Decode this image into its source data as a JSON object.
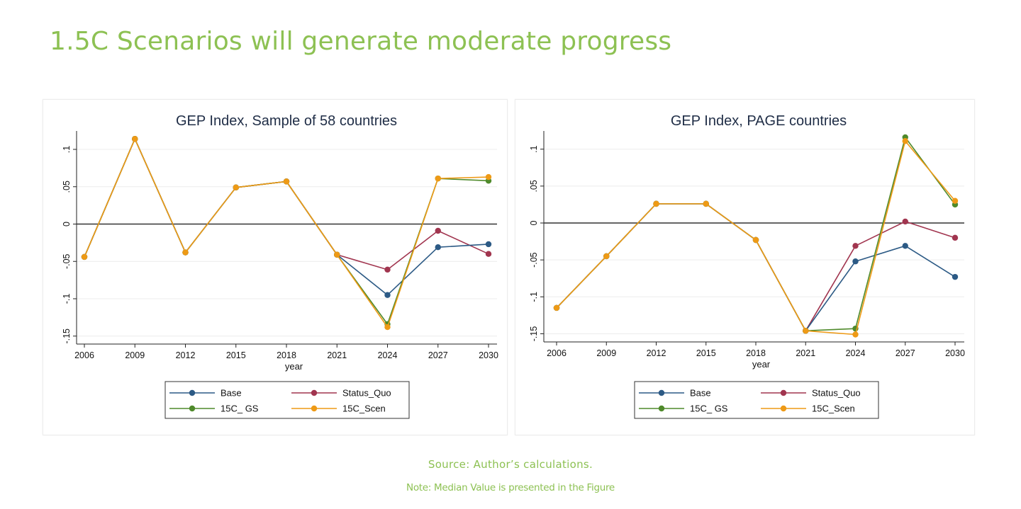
{
  "page": {
    "title": "1.5C Scenarios will generate moderate progress",
    "source": "Source: Author’s calculations.",
    "note": "Note: Median Value is presented in the Figure"
  },
  "colors": {
    "title_green": "#8dc153",
    "Base": "#2c5a85",
    "Status_Quo": "#a1354f",
    "15C_ GS": "#4f8a2b",
    "15C_Scen": "#ee9a16",
    "zero_line": "#333333"
  },
  "chart_data": [
    {
      "type": "line",
      "title": "GEP Index, Sample of 58 countries",
      "xlabel": "year",
      "ylabel": "",
      "x": [
        "2006",
        "2009",
        "2012",
        "2015",
        "2018",
        "2021",
        "2024",
        "2027",
        "2030"
      ],
      "yticks": [
        ".1",
        ".05",
        "0",
        "-.05",
        "-.1",
        "-.15"
      ],
      "ylim": [
        -0.16,
        0.12
      ],
      "reference_line": 0,
      "grid": true,
      "legend": "bottom",
      "series": [
        {
          "name": "Base",
          "values": [
            -0.044,
            0.114,
            -0.038,
            0.049,
            0.057,
            -0.041,
            -0.095,
            -0.031,
            -0.027
          ]
        },
        {
          "name": "Status_Quo",
          "values": [
            -0.044,
            0.114,
            -0.038,
            0.049,
            0.057,
            -0.041,
            -0.061,
            -0.009,
            -0.04
          ]
        },
        {
          "name": "15C_ GS",
          "values": [
            -0.044,
            0.114,
            -0.038,
            0.049,
            0.057,
            -0.041,
            -0.134,
            0.061,
            0.058
          ]
        },
        {
          "name": "15C_Scen",
          "values": [
            -0.044,
            0.114,
            -0.038,
            0.049,
            0.057,
            -0.041,
            -0.138,
            0.061,
            0.063
          ]
        }
      ]
    },
    {
      "type": "line",
      "title": "GEP Index, PAGE countries",
      "xlabel": "year",
      "ylabel": "",
      "x": [
        "2006",
        "2009",
        "2012",
        "2015",
        "2018",
        "2021",
        "2024",
        "2027",
        "2030"
      ],
      "yticks": [
        ".1",
        ".05",
        "0",
        "-.05",
        "-.1",
        "-.15"
      ],
      "ylim": [
        -0.16,
        0.12
      ],
      "reference_line": 0,
      "grid": true,
      "legend": "bottom",
      "series": [
        {
          "name": "Base",
          "values": [
            -0.115,
            -0.045,
            0.026,
            0.026,
            -0.023,
            -0.146,
            -0.052,
            -0.031,
            -0.073
          ]
        },
        {
          "name": "Status_Quo",
          "values": [
            -0.115,
            -0.045,
            0.026,
            0.026,
            -0.023,
            -0.146,
            -0.031,
            0.002,
            -0.02
          ]
        },
        {
          "name": "15C_ GS",
          "values": [
            -0.115,
            -0.045,
            0.026,
            0.026,
            -0.023,
            -0.146,
            -0.143,
            0.116,
            0.025
          ]
        },
        {
          "name": "15C_Scen",
          "values": [
            -0.115,
            -0.045,
            0.026,
            0.026,
            -0.023,
            -0.146,
            -0.151,
            0.111,
            0.03
          ]
        }
      ]
    }
  ]
}
